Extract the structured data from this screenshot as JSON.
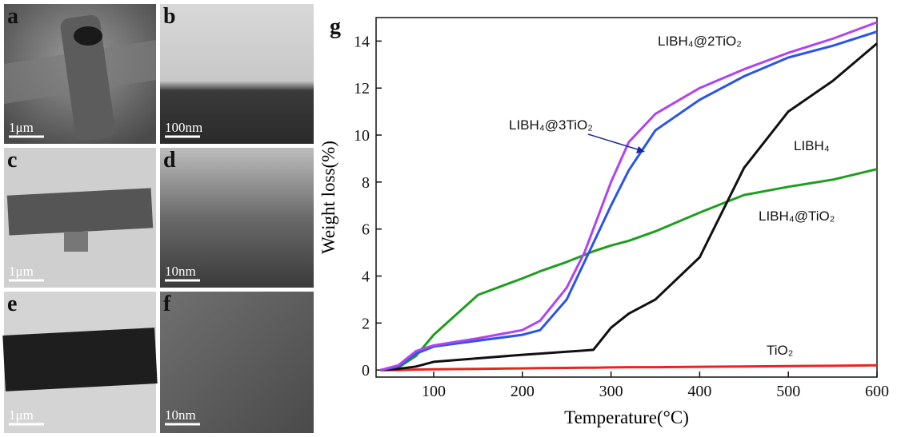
{
  "panels": [
    {
      "label": "a",
      "scale": "1μm"
    },
    {
      "label": "b",
      "scale": "100nm"
    },
    {
      "label": "c",
      "scale": "1μm"
    },
    {
      "label": "d",
      "scale": "10nm"
    },
    {
      "label": "e",
      "scale": "1μm"
    },
    {
      "label": "f",
      "scale": "10nm"
    }
  ],
  "chart_data": {
    "type": "line",
    "panel_label": "g",
    "x_label": "Temperature(°C)",
    "y_label": "Weight loss(%)",
    "xlim": [
      35,
      600
    ],
    "ylim": [
      -0.3,
      15
    ],
    "xticks": [
      100,
      200,
      300,
      400,
      500,
      600
    ],
    "yticks": [
      0,
      2,
      4,
      6,
      8,
      10,
      12,
      14
    ],
    "x": [
      40,
      60,
      80,
      100,
      150,
      200,
      220,
      250,
      270,
      280,
      300,
      320,
      350,
      400,
      450,
      500,
      550,
      600
    ],
    "series": [
      {
        "name": "TiO₂",
        "color": "#e8261f",
        "values": [
          0,
          0,
          0.02,
          0.03,
          0.05,
          0.07,
          0.08,
          0.09,
          0.1,
          0.1,
          0.11,
          0.12,
          0.12,
          0.14,
          0.15,
          0.17,
          0.18,
          0.2
        ]
      },
      {
        "name": "LIBH₄@TiO₂",
        "color": "#1f9e1f",
        "values": [
          0,
          0.1,
          0.6,
          1.5,
          3.2,
          3.9,
          4.2,
          4.6,
          4.9,
          5.05,
          5.3,
          5.5,
          5.9,
          6.7,
          7.45,
          7.8,
          8.1,
          8.55
        ]
      },
      {
        "name": "LIBH₄",
        "color": "#111111",
        "values": [
          0,
          0.05,
          0.15,
          0.35,
          0.5,
          0.65,
          0.7,
          0.78,
          0.83,
          0.86,
          1.8,
          2.4,
          3.0,
          4.8,
          8.6,
          11.0,
          12.3,
          13.9
        ]
      },
      {
        "name": "LIBH₄@3TiO₂",
        "color": "#2a55e6",
        "values": [
          0,
          0.15,
          0.7,
          1.0,
          1.25,
          1.5,
          1.7,
          3.0,
          4.6,
          5.4,
          7.0,
          8.5,
          10.2,
          11.5,
          12.5,
          13.3,
          13.8,
          14.4
        ]
      },
      {
        "name": "LIBH₄@2TiO₂",
        "color": "#b044f0",
        "values": [
          0,
          0.2,
          0.8,
          1.05,
          1.35,
          1.7,
          2.1,
          3.5,
          5.0,
          6.0,
          8.0,
          9.7,
          10.9,
          12.0,
          12.8,
          13.5,
          14.1,
          14.8
        ]
      }
    ]
  }
}
